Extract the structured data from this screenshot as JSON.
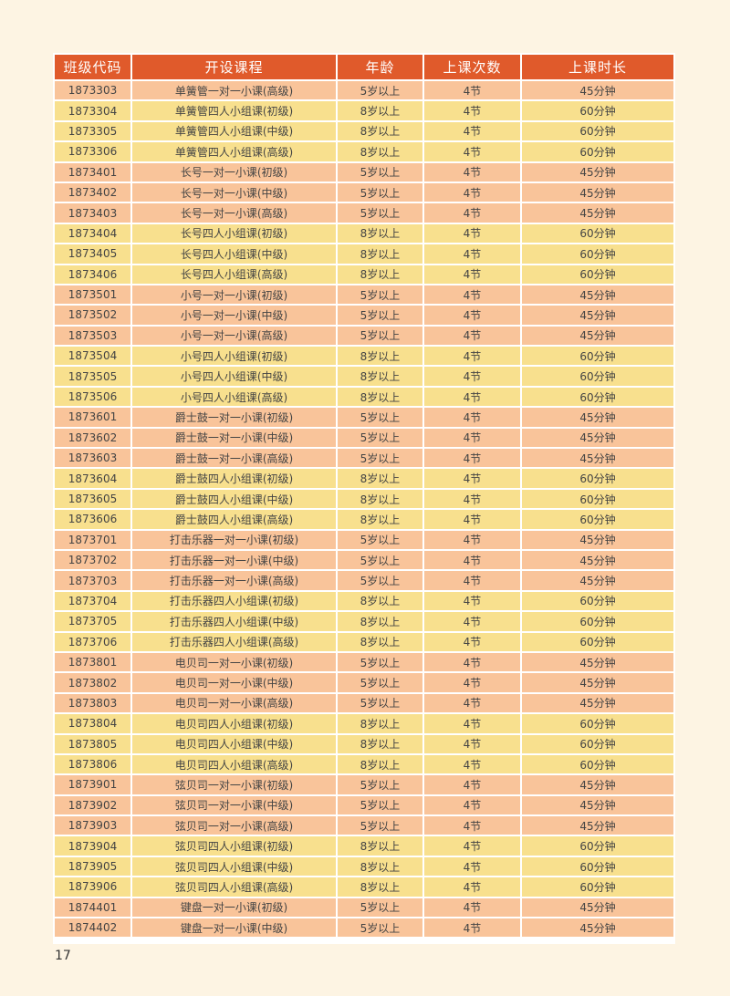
{
  "colors": {
    "header": "#e05a2b",
    "one_on_one_row": "#f9c49a",
    "group_row": "#f8e08e",
    "background": "#fdf4e3"
  },
  "table": {
    "headers": [
      "班级代码",
      "开设课程",
      "年龄",
      "上课次数",
      "上课时长"
    ],
    "rows": [
      [
        "1873303",
        "单簧管一对一小课(高级)",
        "5岁以上",
        "4节",
        "45分钟"
      ],
      [
        "1873304",
        "单簧管四人小组课(初级)",
        "8岁以上",
        "4节",
        "60分钟"
      ],
      [
        "1873305",
        "单簧管四人小组课(中级)",
        "8岁以上",
        "4节",
        "60分钟"
      ],
      [
        "1873306",
        "单簧管四人小组课(高级)",
        "8岁以上",
        "4节",
        "60分钟"
      ],
      [
        "1873401",
        "长号一对一小课(初级)",
        "5岁以上",
        "4节",
        "45分钟"
      ],
      [
        "1873402",
        "长号一对一小课(中级)",
        "5岁以上",
        "4节",
        "45分钟"
      ],
      [
        "1873403",
        "长号一对一小课(高级)",
        "5岁以上",
        "4节",
        "45分钟"
      ],
      [
        "1873404",
        "长号四人小组课(初级)",
        "8岁以上",
        "4节",
        "60分钟"
      ],
      [
        "1873405",
        "长号四人小组课(中级)",
        "8岁以上",
        "4节",
        "60分钟"
      ],
      [
        "1873406",
        "长号四人小组课(高级)",
        "8岁以上",
        "4节",
        "60分钟"
      ],
      [
        "1873501",
        "小号一对一小课(初级)",
        "5岁以上",
        "4节",
        "45分钟"
      ],
      [
        "1873502",
        "小号一对一小课(中级)",
        "5岁以上",
        "4节",
        "45分钟"
      ],
      [
        "1873503",
        "小号一对一小课(高级)",
        "5岁以上",
        "4节",
        "45分钟"
      ],
      [
        "1873504",
        "小号四人小组课(初级)",
        "8岁以上",
        "4节",
        "60分钟"
      ],
      [
        "1873505",
        "小号四人小组课(中级)",
        "8岁以上",
        "4节",
        "60分钟"
      ],
      [
        "1873506",
        "小号四人小组课(高级)",
        "8岁以上",
        "4节",
        "60分钟"
      ],
      [
        "1873601",
        "爵士鼓一对一小课(初级)",
        "5岁以上",
        "4节",
        "45分钟"
      ],
      [
        "1873602",
        "爵士鼓一对一小课(中级)",
        "5岁以上",
        "4节",
        "45分钟"
      ],
      [
        "1873603",
        "爵士鼓一对一小课(高级)",
        "5岁以上",
        "4节",
        "45分钟"
      ],
      [
        "1873604",
        "爵士鼓四人小组课(初级)",
        "8岁以上",
        "4节",
        "60分钟"
      ],
      [
        "1873605",
        "爵士鼓四人小组课(中级)",
        "8岁以上",
        "4节",
        "60分钟"
      ],
      [
        "1873606",
        "爵士鼓四人小组课(高级)",
        "8岁以上",
        "4节",
        "60分钟"
      ],
      [
        "1873701",
        "打击乐器一对一小课(初级)",
        "5岁以上",
        "4节",
        "45分钟"
      ],
      [
        "1873702",
        "打击乐器一对一小课(中级)",
        "5岁以上",
        "4节",
        "45分钟"
      ],
      [
        "1873703",
        "打击乐器一对一小课(高级)",
        "5岁以上",
        "4节",
        "45分钟"
      ],
      [
        "1873704",
        "打击乐器四人小组课(初级)",
        "8岁以上",
        "4节",
        "60分钟"
      ],
      [
        "1873705",
        "打击乐器四人小组课(中级)",
        "8岁以上",
        "4节",
        "60分钟"
      ],
      [
        "1873706",
        "打击乐器四人小组课(高级)",
        "8岁以上",
        "4节",
        "60分钟"
      ],
      [
        "1873801",
        "电贝司一对一小课(初级)",
        "5岁以上",
        "4节",
        "45分钟"
      ],
      [
        "1873802",
        "电贝司一对一小课(中级)",
        "5岁以上",
        "4节",
        "45分钟"
      ],
      [
        "1873803",
        "电贝司一对一小课(高级)",
        "5岁以上",
        "4节",
        "45分钟"
      ],
      [
        "1873804",
        "电贝司四人小组课(初级)",
        "8岁以上",
        "4节",
        "60分钟"
      ],
      [
        "1873805",
        "电贝司四人小组课(中级)",
        "8岁以上",
        "4节",
        "60分钟"
      ],
      [
        "1873806",
        "电贝司四人小组课(高级)",
        "8岁以上",
        "4节",
        "60分钟"
      ],
      [
        "1873901",
        "弦贝司一对一小课(初级)",
        "5岁以上",
        "4节",
        "45分钟"
      ],
      [
        "1873902",
        "弦贝司一对一小课(中级)",
        "5岁以上",
        "4节",
        "45分钟"
      ],
      [
        "1873903",
        "弦贝司一对一小课(高级)",
        "5岁以上",
        "4节",
        "45分钟"
      ],
      [
        "1873904",
        "弦贝司四人小组课(初级)",
        "8岁以上",
        "4节",
        "60分钟"
      ],
      [
        "1873905",
        "弦贝司四人小组课(中级)",
        "8岁以上",
        "4节",
        "60分钟"
      ],
      [
        "1873906",
        "弦贝司四人小组课(高级)",
        "8岁以上",
        "4节",
        "60分钟"
      ],
      [
        "1874401",
        "键盘一对一小课(初级)",
        "5岁以上",
        "4节",
        "45分钟"
      ],
      [
        "1874402",
        "键盘一对一小课(中级)",
        "5岁以上",
        "4节",
        "45分钟"
      ]
    ]
  },
  "page_number": "17"
}
